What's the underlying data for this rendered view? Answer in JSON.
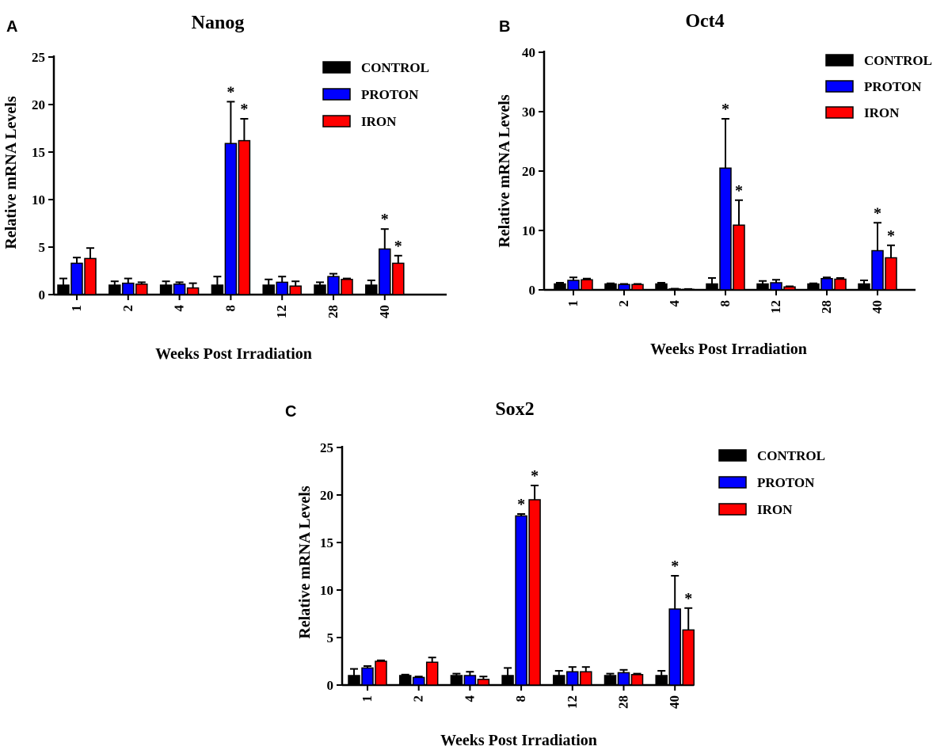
{
  "chart_data": [
    {
      "panel": "A",
      "type": "bar",
      "title": "Nanog",
      "xlabel": "Weeks Post Irradiation",
      "ylabel": "Relative mRNA Levels",
      "ylim": [
        0,
        25
      ],
      "yticks": [
        0,
        5,
        10,
        15,
        20,
        25
      ],
      "categories": [
        "1",
        "2",
        "4",
        "8",
        "12",
        "28",
        "40"
      ],
      "legend": [
        "CONTROL",
        "PROTON",
        "IRON"
      ],
      "series": [
        {
          "name": "CONTROL",
          "color": "#000000",
          "values": [
            1.0,
            1.0,
            1.0,
            1.0,
            1.0,
            1.0,
            1.0
          ],
          "errors": [
            0.7,
            0.4,
            0.4,
            0.9,
            0.6,
            0.3,
            0.5
          ]
        },
        {
          "name": "PROTON",
          "color": "#0000ff",
          "values": [
            3.3,
            1.2,
            1.1,
            15.9,
            1.3,
            1.9,
            4.8
          ],
          "errors": [
            0.6,
            0.5,
            0.2,
            4.4,
            0.6,
            0.3,
            2.1
          ]
        },
        {
          "name": "IRON",
          "color": "#ff0000",
          "values": [
            3.8,
            1.1,
            0.7,
            16.2,
            0.9,
            1.6,
            3.3
          ],
          "errors": [
            1.1,
            0.2,
            0.5,
            2.3,
            0.5,
            0.1,
            0.8
          ]
        }
      ],
      "significant": [
        {
          "category": "8",
          "series": "PROTON",
          "label": "*"
        },
        {
          "category": "8",
          "series": "IRON",
          "label": "*"
        },
        {
          "category": "40",
          "series": "PROTON",
          "label": "*"
        },
        {
          "category": "40",
          "series": "IRON",
          "label": "*"
        }
      ]
    },
    {
      "panel": "B",
      "type": "bar",
      "title": "Oct4",
      "xlabel": "Weeks Post Irradiation",
      "ylabel": "Relative mRNA Levels",
      "ylim": [
        0,
        40
      ],
      "yticks": [
        0,
        10,
        20,
        30,
        40
      ],
      "categories": [
        "1",
        "2",
        "4",
        "8",
        "12",
        "28",
        "40"
      ],
      "legend": [
        "CONTROL",
        "PROTON",
        "IRON"
      ],
      "series": [
        {
          "name": "CONTROL",
          "color": "#000000",
          "values": [
            1.0,
            1.0,
            1.0,
            1.0,
            1.0,
            1.0,
            1.0
          ],
          "errors": [
            0.2,
            0.1,
            0.2,
            1.0,
            0.5,
            0.1,
            0.6
          ]
        },
        {
          "name": "PROTON",
          "color": "#0000ff",
          "values": [
            1.6,
            0.9,
            0.15,
            20.5,
            1.2,
            1.9,
            6.6
          ],
          "errors": [
            0.5,
            0.1,
            0.05,
            8.3,
            0.5,
            0.2,
            4.7
          ]
        },
        {
          "name": "IRON",
          "color": "#ff0000",
          "values": [
            1.7,
            0.9,
            0.1,
            10.9,
            0.5,
            1.8,
            5.4
          ],
          "errors": [
            0.2,
            0.1,
            0.05,
            4.2,
            0.1,
            0.2,
            2.1
          ]
        }
      ],
      "significant": [
        {
          "category": "8",
          "series": "PROTON",
          "label": "*"
        },
        {
          "category": "8",
          "series": "IRON",
          "label": "*"
        },
        {
          "category": "40",
          "series": "PROTON",
          "label": "*"
        },
        {
          "category": "40",
          "series": "IRON",
          "label": "*"
        }
      ]
    },
    {
      "panel": "C",
      "type": "bar",
      "title": "Sox2",
      "xlabel": "Weeks Post Irradiation",
      "ylabel": "Relative mRNA Levels",
      "ylim": [
        0,
        25
      ],
      "yticks": [
        0,
        5,
        10,
        15,
        20,
        25
      ],
      "categories": [
        "1",
        "2",
        "4",
        "8",
        "12",
        "28",
        "40"
      ],
      "legend": [
        "CONTROL",
        "PROTON",
        "IRON"
      ],
      "series": [
        {
          "name": "CONTROL",
          "color": "#000000",
          "values": [
            1.0,
            1.0,
            1.0,
            1.0,
            1.0,
            1.0,
            1.0
          ],
          "errors": [
            0.7,
            0.1,
            0.2,
            0.8,
            0.5,
            0.2,
            0.5
          ]
        },
        {
          "name": "PROTON",
          "color": "#0000ff",
          "values": [
            1.8,
            0.8,
            1.0,
            17.8,
            1.4,
            1.3,
            8.0
          ],
          "errors": [
            0.2,
            0.1,
            0.4,
            0.2,
            0.5,
            0.3,
            3.5
          ]
        },
        {
          "name": "IRON",
          "color": "#ff0000",
          "values": [
            2.5,
            2.4,
            0.6,
            19.5,
            1.4,
            1.1,
            5.8
          ],
          "errors": [
            0.1,
            0.5,
            0.3,
            1.5,
            0.5,
            0.1,
            2.3
          ]
        }
      ],
      "significant": [
        {
          "category": "8",
          "series": "PROTON",
          "label": "*"
        },
        {
          "category": "8",
          "series": "IRON",
          "label": "*"
        },
        {
          "category": "40",
          "series": "PROTON",
          "label": "*"
        },
        {
          "category": "40",
          "series": "IRON",
          "label": "*"
        }
      ]
    }
  ]
}
